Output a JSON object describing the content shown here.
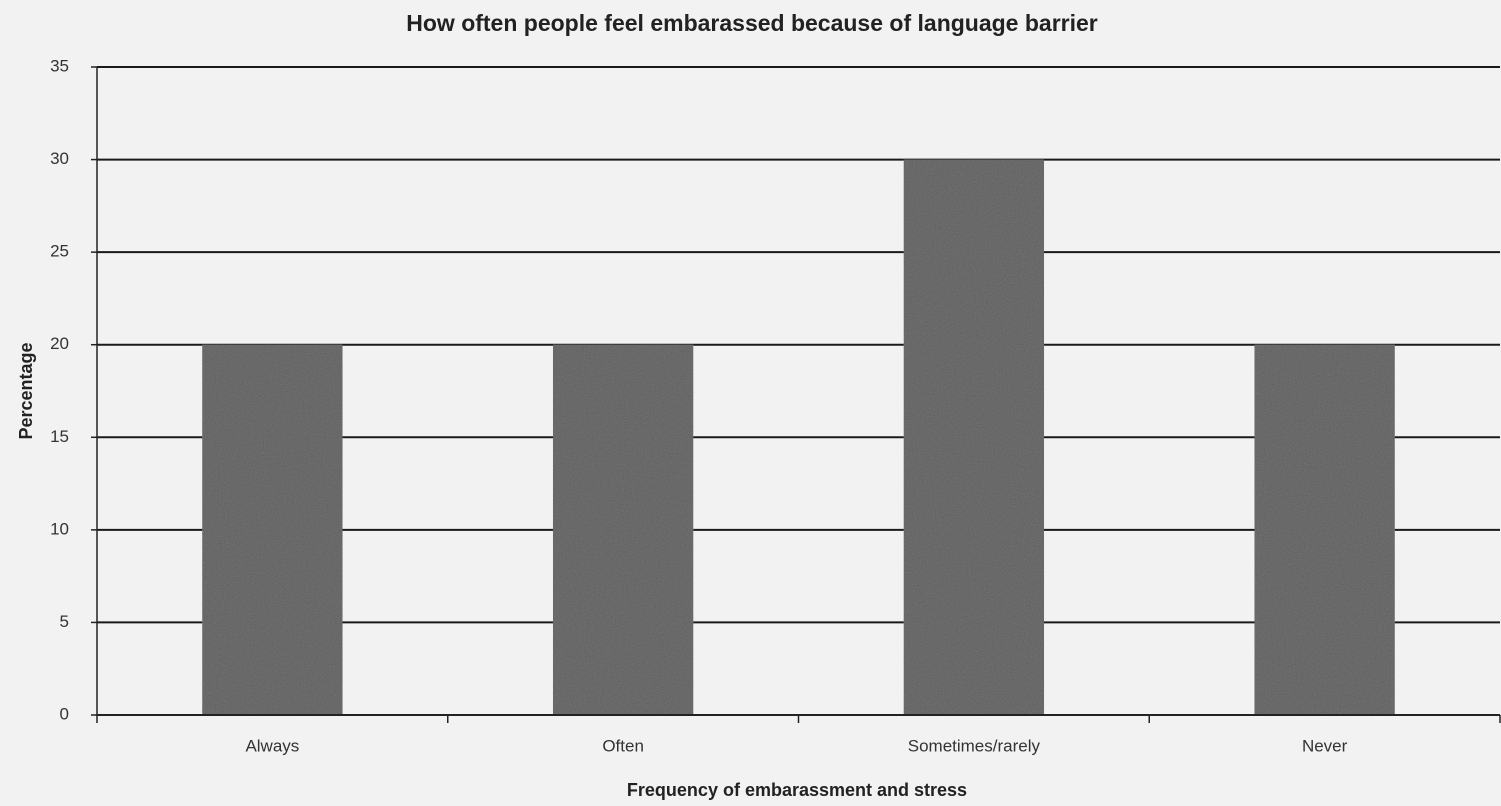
{
  "chart_data": {
    "type": "bar",
    "title": "How often people feel embarassed because of language barrier",
    "x_label": "Frequency of embarassment and stress",
    "y_label": "Percentage",
    "categories": [
      "Always",
      "Often",
      "Sometimes/rarely",
      "Never"
    ],
    "values": [
      20,
      20,
      30,
      20
    ],
    "color": "#7a7a7a",
    "ylim": [
      0,
      35
    ],
    "yticks": [
      0,
      5,
      10,
      15,
      20,
      25,
      30,
      35
    ],
    "grid": true
  }
}
